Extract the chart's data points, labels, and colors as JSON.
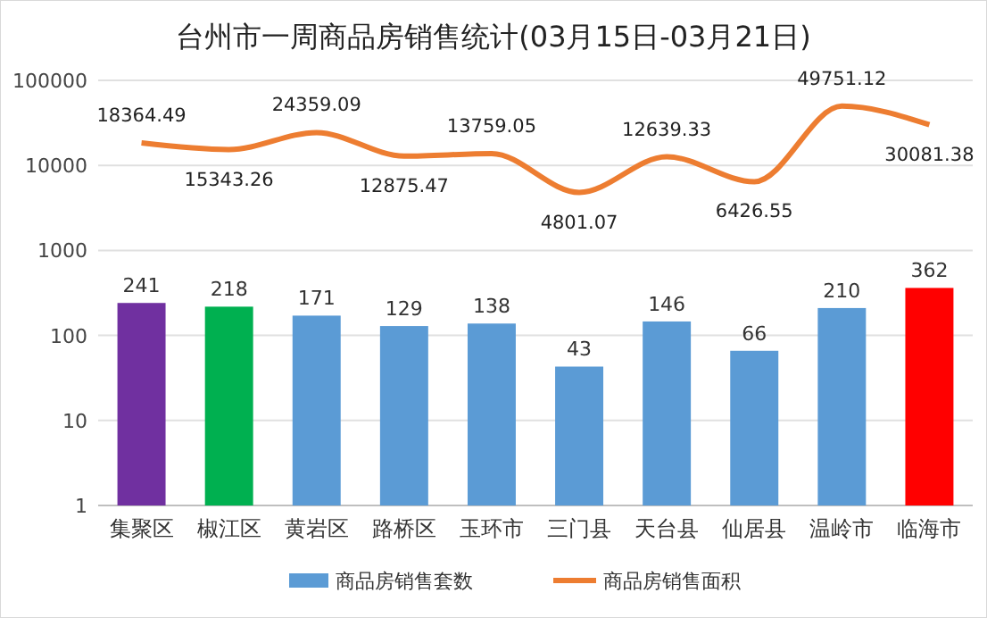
{
  "chart_data": {
    "type": "bar",
    "title": "台州市一周商品房销售统计(03月15日-03月21日)",
    "categories": [
      "集聚区",
      "椒江区",
      "黄岩区",
      "路桥区",
      "玉环市",
      "三门县",
      "天台县",
      "仙居县",
      "温岭市",
      "临海市"
    ],
    "series": [
      {
        "name": "商品房销售套数",
        "color": "#5b9bd5",
        "colors": [
          "#7030a0",
          "#00b050",
          "#5b9bd5",
          "#5b9bd5",
          "#5b9bd5",
          "#5b9bd5",
          "#5b9bd5",
          "#5b9bd5",
          "#5b9bd5",
          "#ff0000"
        ],
        "values": [
          241,
          218,
          171,
          129,
          138,
          43,
          146,
          66,
          210,
          362
        ]
      },
      {
        "name": "商品房销售面积",
        "type": "line",
        "color": "#ed7d31",
        "values": [
          18364.49,
          15343.26,
          24359.09,
          12875.47,
          13759.05,
          4801.07,
          12639.33,
          6426.55,
          49751.12,
          30081.38
        ]
      }
    ],
    "ylim": [
      1,
      100000
    ],
    "yticks": [
      1,
      10,
      100,
      1000,
      10000,
      100000
    ],
    "log": true,
    "grid": "y",
    "legend": "bottom",
    "data_labels": true
  }
}
